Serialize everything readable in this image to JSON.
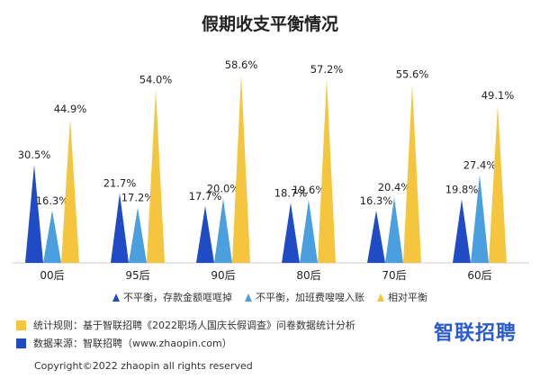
{
  "chart_data": {
    "type": "bar",
    "title": "假期收支平衡情况",
    "categories": [
      "00后",
      "95后",
      "90后",
      "80后",
      "70后",
      "60后"
    ],
    "series": [
      {
        "name": "不平衡，存款金额哐哐掉",
        "values": [
          30.5,
          21.7,
          17.7,
          18.7,
          16.3,
          19.8
        ],
        "color": "#1f4cc4"
      },
      {
        "name": "不平衡，加班费嗖嗖入账",
        "values": [
          16.3,
          17.2,
          20.0,
          19.6,
          20.4,
          27.4
        ],
        "color": "#4aa0df"
      },
      {
        "name": "相对平衡",
        "values": [
          44.9,
          54.0,
          58.6,
          57.2,
          55.6,
          49.1
        ],
        "color": "#f4c53d"
      }
    ],
    "value_labels": [
      [
        "30.5%",
        "16.3%",
        "44.9%"
      ],
      [
        "21.7%",
        "17.2%",
        "54.0%"
      ],
      [
        "17.7%",
        "20.0%",
        "58.6%"
      ],
      [
        "18.7%",
        "19.6%",
        "57.2%"
      ],
      [
        "16.3%",
        "20.4%",
        "55.6%"
      ],
      [
        "19.8%",
        "27.4%",
        "49.1%"
      ]
    ],
    "ylim": [
      0,
      60
    ],
    "legend_position": "bottom",
    "grid": false
  },
  "footnotes": {
    "rule": "统计规则：基于智联招聘《2022职场人国庆长假调查》问卷数据统计分析",
    "source": "数据来源：智联招聘（www.zhaopin.com）",
    "rule_color": "#f4c53d",
    "source_color": "#1f4cc4"
  },
  "logo": {
    "text": "智联招聘"
  },
  "copyright": "Copyright©2022 zhaopin all rights reserved"
}
